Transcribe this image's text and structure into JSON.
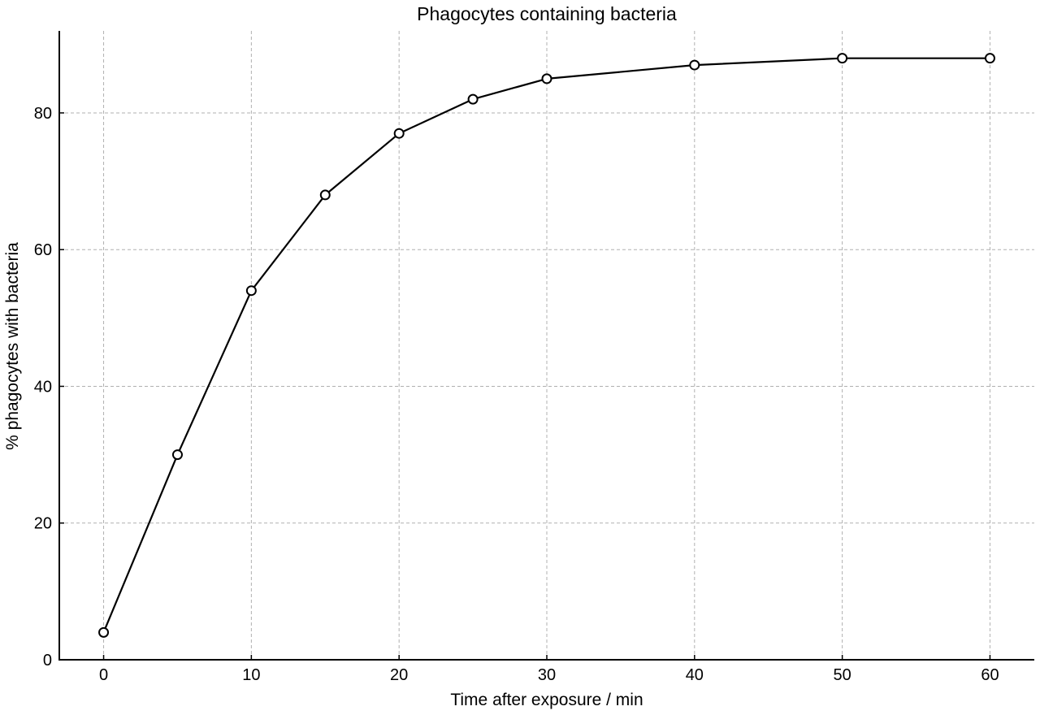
{
  "chart_data": {
    "type": "line",
    "title": "Phagocytes containing bacteria",
    "xlabel": "Time after exposure / min",
    "ylabel": "% phagocytes with bacteria",
    "xlim": [
      -3,
      63
    ],
    "ylim": [
      0,
      92
    ],
    "xticks": [
      0,
      10,
      20,
      30,
      40,
      50,
      60
    ],
    "yticks": [
      0,
      20,
      40,
      60,
      80
    ],
    "grid": true,
    "legend": "none",
    "series": [
      {
        "x": [
          0,
          5,
          10,
          15,
          20,
          25,
          30,
          40,
          50,
          60
        ],
        "y": [
          4,
          30,
          54,
          68,
          77,
          82,
          85,
          87,
          88,
          88
        ],
        "color": "#000000",
        "marker": "open-circle"
      }
    ]
  }
}
